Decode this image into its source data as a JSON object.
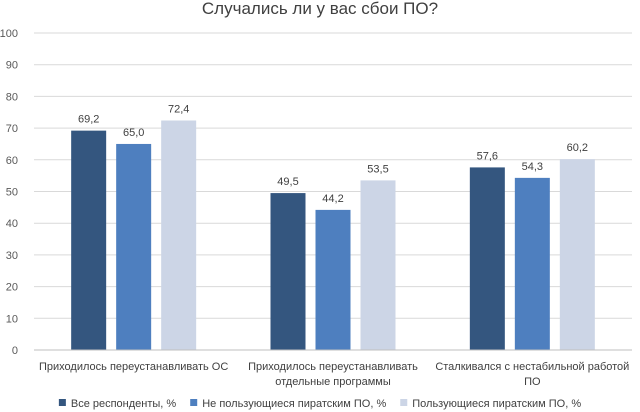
{
  "chart_data": {
    "type": "bar",
    "title": "Случались ли у вас сбои ПО?",
    "categories": [
      [
        "Приходилось переустанавливать ОС"
      ],
      [
        "Приходилось переустанавливать",
        "отдельные программы"
      ],
      [
        "Сталкивался с нестабильной работой",
        "ПО"
      ]
    ],
    "series": [
      {
        "name": "Все респонденты, %",
        "color": "#34567f",
        "values": [
          69.2,
          49.5,
          57.6
        ],
        "labels": [
          "69,2",
          "49,5",
          "57,6"
        ]
      },
      {
        "name": "Не пользующиеся пиратским ПО, %",
        "color": "#4e7fbf",
        "values": [
          65.0,
          44.2,
          54.3
        ],
        "labels": [
          "65,0",
          "44,2",
          "54,3"
        ]
      },
      {
        "name": "Пользующиеся пиратским ПО, %",
        "color": "#ccd5e6",
        "values": [
          72.4,
          53.5,
          60.2
        ],
        "labels": [
          "72,4",
          "53,5",
          "60,2"
        ]
      }
    ],
    "ylim": [
      0,
      100
    ],
    "yticks": [
      "0",
      "10",
      "20",
      "30",
      "40",
      "50",
      "60",
      "70",
      "80",
      "90",
      "100"
    ],
    "grid": true,
    "legend_position": "bottom",
    "gridline_color": "#d9d9d9",
    "axis_color": "#bfbfbf"
  }
}
